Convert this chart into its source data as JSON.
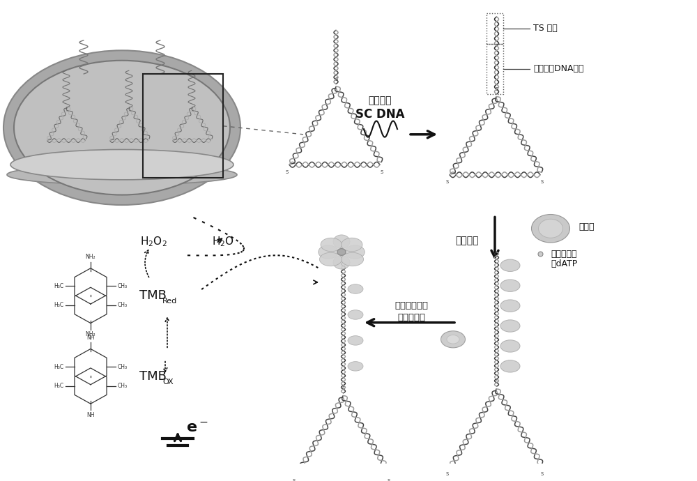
{
  "bg_color": "#ffffff",
  "text_color": "#111111",
  "figsize": [
    10.0,
    6.9
  ],
  "dpi": 100,
  "labels": {
    "sc_dna_line1": "互补单链",
    "sc_dna_line2": "SC DNA",
    "ts_primer": "TS 引物",
    "rigid_dsdna": "刚性双链DNA塔尖",
    "extension": "延伸反应",
    "telomerase": "端粒酶",
    "biotindatp": "生物素标记",
    "biotindatp2": "的dATP",
    "streptavidin": "亲和素标记的",
    "streptavidin2": "过氧化物酶",
    "h2o2": "H$_2$O$_2$",
    "h2o": "H$_2$O",
    "tmb_red_main": "TMB",
    "tmb_red_sub": "Red",
    "tmb_ox_main": "TMB",
    "tmb_ox_sub": "OX",
    "electron": "e$^-$"
  },
  "colors": {
    "dna_dark": "#444444",
    "dna_light": "#aaaaaa",
    "dna_green": "#888877",
    "blob_face": "#cccccc",
    "blob_edge": "#999999",
    "electrode_outer": "#c8c8c8",
    "electrode_inner": "#b0b0b0",
    "electrode_rim": "#d5d5d5",
    "arrow": "#111111",
    "chem": "#333333"
  }
}
